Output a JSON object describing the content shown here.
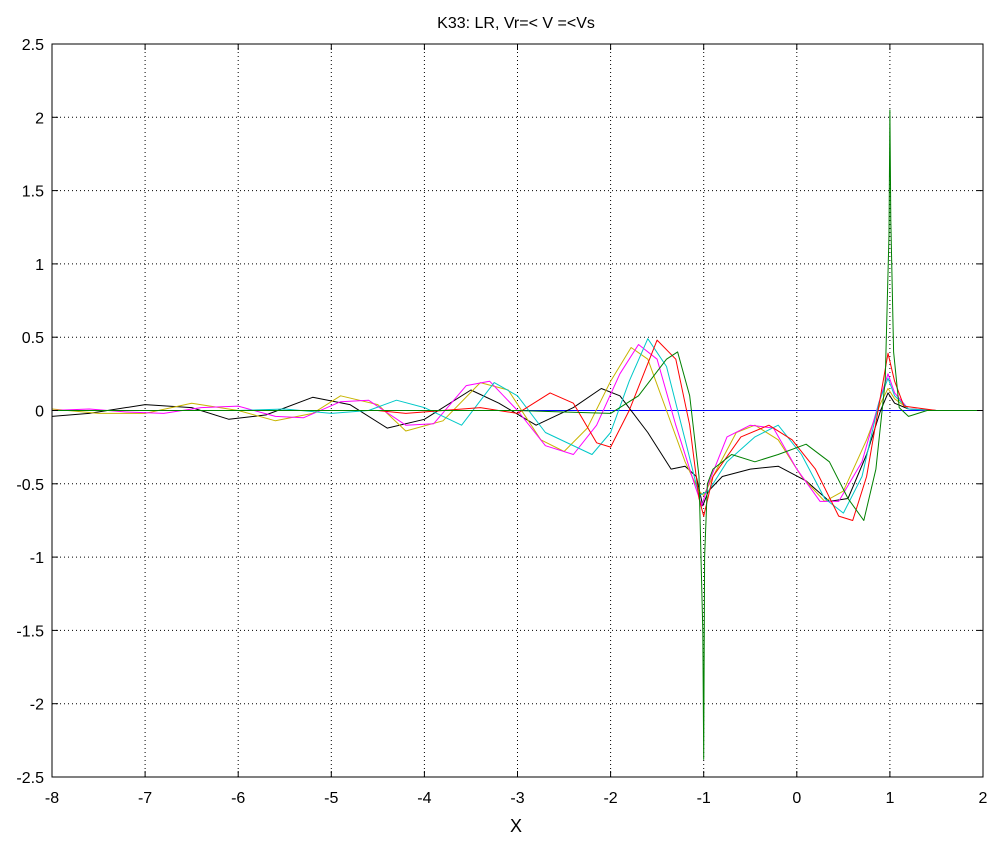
{
  "chart_data": {
    "type": "line",
    "title": "K33: LR, Vr=< V =<Vs",
    "xlabel": "X",
    "ylabel": "",
    "xlim": [
      -8,
      2
    ],
    "ylim": [
      -2.5,
      2.5
    ],
    "xticks": [
      -8,
      -7,
      -6,
      -5,
      -4,
      -3,
      -2,
      -1,
      0,
      1,
      2
    ],
    "yticks": [
      2.5,
      2,
      1.5,
      1,
      0.5,
      0,
      -0.5,
      -1,
      -1.5,
      -2,
      -2.5
    ],
    "xtick_labels": [
      "-8",
      "-7",
      "-6",
      "-5",
      "-4",
      "-3",
      "-2",
      "-1",
      "0",
      "1",
      "2"
    ],
    "ytick_labels": [
      "2.5",
      "2",
      "1.5",
      "1",
      "0.5",
      "0",
      "-0.5",
      "-1",
      "-1.5",
      "-2",
      "-2.5"
    ],
    "grid": true,
    "legend": "none",
    "series": [
      {
        "color": "#0000ff",
        "points": [
          [
            -8,
            0
          ],
          [
            -6,
            0
          ],
          [
            -4,
            0
          ],
          [
            -2,
            0
          ],
          [
            0,
            0
          ],
          [
            2,
            0
          ]
        ]
      },
      {
        "color": "#000000",
        "points": [
          [
            -8,
            -0.04
          ],
          [
            -7.6,
            -0.02
          ],
          [
            -7.0,
            0.04
          ],
          [
            -6.5,
            0.02
          ],
          [
            -6.1,
            -0.06
          ],
          [
            -5.7,
            -0.03
          ],
          [
            -5.2,
            0.09
          ],
          [
            -4.8,
            0.04
          ],
          [
            -4.4,
            -0.12
          ],
          [
            -4.0,
            -0.06
          ],
          [
            -3.5,
            0.14
          ],
          [
            -3.2,
            0.05
          ],
          [
            -2.8,
            -0.1
          ],
          [
            -2.4,
            0.02
          ],
          [
            -2.1,
            0.15
          ],
          [
            -1.9,
            0.1
          ],
          [
            -1.6,
            -0.15
          ],
          [
            -1.35,
            -0.4
          ],
          [
            -1.2,
            -0.38
          ],
          [
            -1.08,
            -0.45
          ],
          [
            -1.01,
            -0.65
          ],
          [
            -0.95,
            -0.55
          ],
          [
            -0.8,
            -0.45
          ],
          [
            -0.5,
            -0.4
          ],
          [
            -0.2,
            -0.38
          ],
          [
            0.1,
            -0.48
          ],
          [
            0.35,
            -0.62
          ],
          [
            0.55,
            -0.6
          ],
          [
            0.75,
            -0.3
          ],
          [
            0.9,
            0.0
          ],
          [
            0.98,
            0.12
          ],
          [
            1.05,
            0.05
          ],
          [
            1.2,
            0.01
          ],
          [
            1.5,
            0.0
          ],
          [
            2,
            0.0
          ]
        ]
      },
      {
        "color": "#c8b400",
        "points": [
          [
            -8,
            0.01
          ],
          [
            -7.5,
            -0.02
          ],
          [
            -7.0,
            -0.02
          ],
          [
            -6.5,
            0.05
          ],
          [
            -6.0,
            0.0
          ],
          [
            -5.6,
            -0.07
          ],
          [
            -5.2,
            -0.02
          ],
          [
            -4.9,
            0.1
          ],
          [
            -4.5,
            0.04
          ],
          [
            -4.2,
            -0.14
          ],
          [
            -3.8,
            -0.07
          ],
          [
            -3.4,
            0.19
          ],
          [
            -3.1,
            0.14
          ],
          [
            -2.75,
            -0.2
          ],
          [
            -2.5,
            -0.28
          ],
          [
            -2.25,
            -0.12
          ],
          [
            -2.0,
            0.2
          ],
          [
            -1.78,
            0.43
          ],
          [
            -1.6,
            0.35
          ],
          [
            -1.4,
            0.0
          ],
          [
            -1.2,
            -0.35
          ],
          [
            -1.05,
            -0.55
          ],
          [
            -1.0,
            -0.58
          ],
          [
            -0.9,
            -0.45
          ],
          [
            -0.65,
            -0.15
          ],
          [
            -0.45,
            -0.1
          ],
          [
            -0.2,
            -0.2
          ],
          [
            0.05,
            -0.45
          ],
          [
            0.3,
            -0.62
          ],
          [
            0.5,
            -0.55
          ],
          [
            0.75,
            -0.2
          ],
          [
            0.9,
            0.05
          ],
          [
            0.98,
            0.15
          ],
          [
            1.05,
            0.08
          ],
          [
            1.2,
            0.01
          ],
          [
            1.5,
            0.0
          ],
          [
            2,
            0.0
          ]
        ]
      },
      {
        "color": "#ff00ff",
        "points": [
          [
            -8,
            0.0
          ],
          [
            -7.6,
            0.01
          ],
          [
            -7.2,
            -0.01
          ],
          [
            -6.8,
            -0.02
          ],
          [
            -6.4,
            0.02
          ],
          [
            -6.0,
            0.03
          ],
          [
            -5.6,
            -0.04
          ],
          [
            -5.3,
            -0.05
          ],
          [
            -4.9,
            0.06
          ],
          [
            -4.6,
            0.07
          ],
          [
            -4.2,
            -0.1
          ],
          [
            -3.9,
            -0.09
          ],
          [
            -3.55,
            0.17
          ],
          [
            -3.3,
            0.2
          ],
          [
            -3.0,
            0.0
          ],
          [
            -2.7,
            -0.24
          ],
          [
            -2.4,
            -0.3
          ],
          [
            -2.15,
            -0.1
          ],
          [
            -1.9,
            0.25
          ],
          [
            -1.7,
            0.45
          ],
          [
            -1.5,
            0.35
          ],
          [
            -1.3,
            -0.1
          ],
          [
            -1.1,
            -0.5
          ],
          [
            -1.02,
            -0.65
          ],
          [
            -0.95,
            -0.5
          ],
          [
            -0.75,
            -0.18
          ],
          [
            -0.5,
            -0.1
          ],
          [
            -0.25,
            -0.12
          ],
          [
            0.0,
            -0.4
          ],
          [
            0.25,
            -0.62
          ],
          [
            0.45,
            -0.62
          ],
          [
            0.7,
            -0.35
          ],
          [
            0.88,
            0.05
          ],
          [
            0.98,
            0.25
          ],
          [
            1.05,
            0.12
          ],
          [
            1.2,
            0.01
          ],
          [
            1.5,
            0.0
          ],
          [
            2,
            0.0
          ]
        ]
      },
      {
        "color": "#00c8c8",
        "points": [
          [
            -8,
            0.0
          ],
          [
            -7.0,
            0.0
          ],
          [
            -6.0,
            0.0
          ],
          [
            -5.5,
            0.01
          ],
          [
            -5.0,
            -0.02
          ],
          [
            -4.6,
            0.0
          ],
          [
            -4.3,
            0.07
          ],
          [
            -4.0,
            0.02
          ],
          [
            -3.6,
            -0.1
          ],
          [
            -3.25,
            0.19
          ],
          [
            -3.0,
            0.1
          ],
          [
            -2.7,
            -0.15
          ],
          [
            -2.2,
            -0.3
          ],
          [
            -2.0,
            -0.15
          ],
          [
            -1.8,
            0.2
          ],
          [
            -1.6,
            0.49
          ],
          [
            -1.4,
            0.3
          ],
          [
            -1.2,
            -0.2
          ],
          [
            -1.05,
            -0.58
          ],
          [
            -0.95,
            -0.55
          ],
          [
            -0.75,
            -0.35
          ],
          [
            -0.45,
            -0.18
          ],
          [
            -0.2,
            -0.1
          ],
          [
            0.05,
            -0.3
          ],
          [
            0.3,
            -0.6
          ],
          [
            0.5,
            -0.7
          ],
          [
            0.7,
            -0.45
          ],
          [
            0.88,
            0.05
          ],
          [
            0.98,
            0.22
          ],
          [
            1.05,
            0.1
          ],
          [
            1.2,
            0.01
          ],
          [
            1.5,
            0.0
          ],
          [
            2,
            0.0
          ]
        ]
      },
      {
        "color": "#ff0000",
        "points": [
          [
            -8,
            0.0
          ],
          [
            -7.0,
            0.0
          ],
          [
            -6.0,
            0.0
          ],
          [
            -5.0,
            0.0
          ],
          [
            -4.5,
            0.0
          ],
          [
            -4.2,
            -0.02
          ],
          [
            -3.8,
            0.0
          ],
          [
            -3.4,
            0.02
          ],
          [
            -3.0,
            -0.02
          ],
          [
            -2.65,
            0.12
          ],
          [
            -2.4,
            0.05
          ],
          [
            -2.15,
            -0.22
          ],
          [
            -2.0,
            -0.25
          ],
          [
            -1.8,
            0.0
          ],
          [
            -1.5,
            0.48
          ],
          [
            -1.3,
            0.35
          ],
          [
            -1.15,
            -0.1
          ],
          [
            -1.05,
            -0.6
          ],
          [
            -1.0,
            -0.72
          ],
          [
            -0.9,
            -0.45
          ],
          [
            -0.6,
            -0.18
          ],
          [
            -0.3,
            -0.1
          ],
          [
            -0.05,
            -0.2
          ],
          [
            0.2,
            -0.4
          ],
          [
            0.45,
            -0.72
          ],
          [
            0.6,
            -0.75
          ],
          [
            0.75,
            -0.45
          ],
          [
            0.9,
            0.1
          ],
          [
            0.98,
            0.39
          ],
          [
            1.05,
            0.2
          ],
          [
            1.15,
            0.03
          ],
          [
            1.5,
            0.0
          ],
          [
            2,
            0.0
          ]
        ]
      },
      {
        "color": "#008000",
        "points": [
          [
            -8,
            0.0
          ],
          [
            -6.0,
            0.0
          ],
          [
            -4.0,
            0.0
          ],
          [
            -3.0,
            0.0
          ],
          [
            -2.5,
            -0.01
          ],
          [
            -2.0,
            -0.02
          ],
          [
            -1.7,
            0.1
          ],
          [
            -1.4,
            0.35
          ],
          [
            -1.28,
            0.4
          ],
          [
            -1.15,
            0.1
          ],
          [
            -1.05,
            -0.45
          ],
          [
            -1.01,
            -1.5
          ],
          [
            -1.0,
            -2.38
          ],
          [
            -0.99,
            -1.0
          ],
          [
            -0.96,
            -0.5
          ],
          [
            -0.9,
            -0.4
          ],
          [
            -0.7,
            -0.3
          ],
          [
            -0.45,
            -0.35
          ],
          [
            -0.2,
            -0.3
          ],
          [
            0.1,
            -0.23
          ],
          [
            0.35,
            -0.35
          ],
          [
            0.55,
            -0.6
          ],
          [
            0.72,
            -0.75
          ],
          [
            0.85,
            -0.4
          ],
          [
            0.95,
            0.2
          ],
          [
            0.99,
            1.2
          ],
          [
            1.0,
            2.05
          ],
          [
            1.01,
            1.3
          ],
          [
            1.04,
            0.4
          ],
          [
            1.1,
            0.02
          ],
          [
            1.2,
            -0.04
          ],
          [
            1.4,
            0.0
          ],
          [
            2,
            0.0
          ]
        ]
      }
    ]
  }
}
